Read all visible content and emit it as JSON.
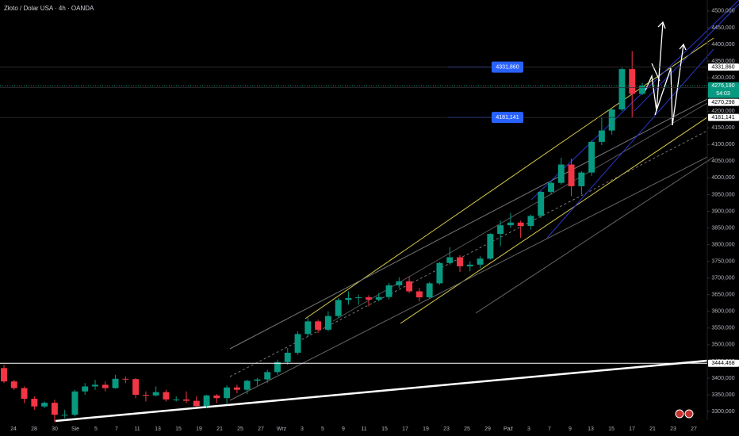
{
  "chart_data": {
    "type": "candlestick",
    "title": "Złoto / Dolar USA · 4h · OANDA",
    "open": [
      3430,
      3390,
      3370,
      3338,
      3315,
      3326,
      3290,
      3290,
      3360,
      3375,
      3380,
      3370,
      3398,
      3397,
      3350,
      3348,
      3358,
      3336,
      3336,
      3332,
      3316,
      3348,
      3340,
      3372,
      3365,
      3392,
      3396,
      3418,
      3448,
      3476,
      3532,
      3570,
      3545,
      3586,
      3634,
      3640,
      3642,
      3635,
      3643,
      3678,
      3690,
      3660,
      3642,
      3684,
      3745,
      3762,
      3735,
      3740,
      3758,
      3832,
      3858,
      3866,
      3856,
      3886,
      3958,
      3985,
      4040,
      3975,
      4016,
      4108,
      4142,
      4205,
      4326,
      4252
    ],
    "high": [
      3440,
      3395,
      3375,
      3345,
      3330,
      3335,
      3305,
      3365,
      3385,
      3395,
      3390,
      3410,
      3405,
      3400,
      3360,
      3375,
      3365,
      3345,
      3360,
      3345,
      3350,
      3352,
      3378,
      3380,
      3395,
      3400,
      3425,
      3455,
      3490,
      3540,
      3580,
      3575,
      3600,
      3640,
      3660,
      3650,
      3648,
      3655,
      3685,
      3702,
      3705,
      3670,
      3688,
      3748,
      3792,
      3768,
      3750,
      3765,
      3834,
      3872,
      3895,
      3872,
      3890,
      3960,
      3990,
      4060,
      4058,
      4020,
      4112,
      4180,
      4210,
      4330,
      4380,
      4285
    ],
    "low": [
      3385,
      3365,
      3325,
      3305,
      3310,
      3268,
      3280,
      3285,
      3350,
      3365,
      3360,
      3368,
      3385,
      3340,
      3330,
      3345,
      3330,
      3330,
      3325,
      3315,
      3312,
      3325,
      3322,
      3355,
      3352,
      3378,
      3385,
      3410,
      3440,
      3470,
      3525,
      3535,
      3540,
      3580,
      3620,
      3620,
      3615,
      3630,
      3636,
      3670,
      3655,
      3630,
      3640,
      3680,
      3740,
      3718,
      3720,
      3730,
      3755,
      3795,
      3850,
      3820,
      3845,
      3880,
      3950,
      3980,
      3945,
      3950,
      4006,
      4098,
      4130,
      4200,
      4180,
      4248
    ],
    "close": [
      3390,
      3370,
      3338,
      3315,
      3326,
      3290,
      3290,
      3360,
      3375,
      3380,
      3370,
      3398,
      3397,
      3350,
      3348,
      3358,
      3336,
      3336,
      3332,
      3316,
      3348,
      3340,
      3372,
      3365,
      3392,
      3396,
      3418,
      3448,
      3476,
      3532,
      3570,
      3545,
      3586,
      3634,
      3640,
      3642,
      3635,
      3643,
      3678,
      3690,
      3660,
      3642,
      3684,
      3745,
      3762,
      3735,
      3740,
      3758,
      3832,
      3858,
      3866,
      3856,
      3886,
      3958,
      3985,
      4040,
      3975,
      4016,
      4108,
      4142,
      4205,
      4326,
      4252,
      4276.19
    ],
    "up_color": "#089981",
    "down_color": "#f23645",
    "x_labels": [
      "24",
      "28",
      "30",
      "Sie",
      "5",
      "7",
      "11",
      "13",
      "15",
      "19",
      "21",
      "25",
      "27",
      "Wrz",
      "3",
      "5",
      "9",
      "11",
      "15",
      "17",
      "19",
      "23",
      "25",
      "29",
      "Paź",
      "3",
      "7",
      "9",
      "13",
      "15",
      "17",
      "21",
      "23",
      "27"
    ],
    "ylim": [
      3274,
      4533
    ],
    "yticks": [
      {
        "value": 3300,
        "label": "3300,000"
      },
      {
        "value": 3350,
        "label": "3350,000"
      },
      {
        "value": 3400,
        "label": "3400,000"
      },
      {
        "value": 3450,
        "label": "3450,000"
      },
      {
        "value": 3500,
        "label": "3500,000"
      },
      {
        "value": 3550,
        "label": "3550,000"
      },
      {
        "value": 3600,
        "label": "3600,000"
      },
      {
        "value": 3650,
        "label": "3650,000"
      },
      {
        "value": 3700,
        "label": "3700,000"
      },
      {
        "value": 3750,
        "label": "3750,000"
      },
      {
        "value": 3800,
        "label": "3800,000"
      },
      {
        "value": 3850,
        "label": "3850,000"
      },
      {
        "value": 3900,
        "label": "3900,000"
      },
      {
        "value": 3950,
        "label": "3950,000"
      },
      {
        "value": 4000,
        "label": "4000,000"
      },
      {
        "value": 4050,
        "label": "4050,000"
      },
      {
        "value": 4100,
        "label": "4100,000"
      },
      {
        "value": 4150,
        "label": "4150,000"
      },
      {
        "value": 4200,
        "label": "4200,000"
      },
      {
        "value": 4250,
        "label": "4250,000"
      },
      {
        "value": 4300,
        "label": "4300,000"
      },
      {
        "value": 4350,
        "label": "4350,000"
      },
      {
        "value": 4400,
        "label": "4400,000"
      },
      {
        "value": 4450,
        "label": "4450,000"
      },
      {
        "value": 4500,
        "label": "4500,000"
      }
    ],
    "grid": false,
    "price_levels": [
      {
        "value": 4331.86,
        "label": "4331,860"
      },
      {
        "value": 4270.298,
        "label": "4270,298"
      },
      {
        "value": 4181.141,
        "label": "4181,141"
      },
      {
        "value": 3444.468,
        "label": "3444,468"
      }
    ],
    "current_price": {
      "value": 4276.19,
      "label": "4276,190",
      "countdown": "54:03",
      "color": "#089981"
    },
    "chart_labels": [
      {
        "value": 4331.86,
        "label": "4331,860"
      },
      {
        "value": 4181.141,
        "label": "4181,141"
      }
    ],
    "label_color": "#2962ff"
  }
}
